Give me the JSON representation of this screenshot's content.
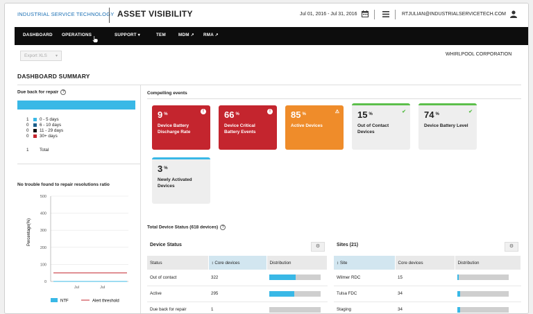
{
  "header": {
    "brand": "INDUSTRIAL SERVICE TECHNOLOGY",
    "title": "ASSET VISIBILITY",
    "date_range": "Jul 01, 2016 - Jul 31, 2016",
    "user_email": "RTJULIAN@INDUSTRIALSERVICETECH.COM",
    "icons": [
      "calendar-icon",
      "menu-icon",
      "user-icon"
    ]
  },
  "nav": {
    "items": [
      {
        "label": "DASHBOARD"
      },
      {
        "label": "OPERATIONS"
      },
      {
        "label": "SUPPORT",
        "suffix": "▾"
      },
      {
        "label": "TEM"
      },
      {
        "label": "MDM",
        "suffix": "↗"
      },
      {
        "label": "RMA",
        "suffix": "↗"
      }
    ]
  },
  "toolbar": {
    "export_label": "Export XLS",
    "company": "WHIRLPOOL CORPORATION"
  },
  "summary": {
    "title": "DASHBOARD SUMMARY"
  },
  "due_back": {
    "title": "Due back for repair",
    "bar_color": "#39b8e6",
    "rows": [
      {
        "count": "1",
        "label": "0 - 5 days",
        "color": "#39b8e6"
      },
      {
        "count": "0",
        "label": "6 - 10 days",
        "color": "#1b5e8a"
      },
      {
        "count": "0",
        "label": "11 - 29 days",
        "color": "#111111"
      },
      {
        "count": "0",
        "label": "30+ days",
        "color": "#c4252e"
      }
    ],
    "total_count": "1",
    "total_label": "Total"
  },
  "ntf": {
    "title": "No trouble found to repair resolutions ratio",
    "ylabel": "Percentage(%)",
    "legend_ntf": "NTF",
    "legend_threshold": "Alert threshold"
  },
  "chart_data": {
    "type": "line",
    "title": "No trouble found to repair resolutions ratio",
    "xlabel": "",
    "ylabel": "Percentage(%)",
    "y_ticks": [
      0,
      100,
      200,
      300,
      400,
      500
    ],
    "ylim": [
      0,
      500
    ],
    "x_ticks": [
      "Jul",
      "Jul"
    ],
    "series": [
      {
        "name": "NTF",
        "values": [
          0,
          0
        ],
        "color": "#39b8e6"
      },
      {
        "name": "Alert threshold",
        "values": [
          50,
          50
        ],
        "color": "#c4252e"
      }
    ],
    "legend": "bottom"
  },
  "events": {
    "title": "Compelling events",
    "tiles": [
      {
        "value": "9",
        "unit": "%",
        "label": "Device Battery Discharge Rate",
        "style": "red",
        "icon": "!"
      },
      {
        "value": "66",
        "unit": "%",
        "label": "Device Critical Battery Events",
        "style": "red",
        "icon": "!"
      },
      {
        "value": "85",
        "unit": "%",
        "label": "Active Devices",
        "style": "orange",
        "icon": "⚠"
      },
      {
        "value": "15",
        "unit": "%",
        "label": "Out of Contact Devices",
        "style": "grey-green",
        "icon": "✔"
      },
      {
        "value": "74",
        "unit": "%",
        "label": "Device Battery Level",
        "style": "grey-green",
        "icon": "✔"
      },
      {
        "value": "3",
        "unit": "%",
        "label": "Newly Activated Devices",
        "style": "grey-blue",
        "icon": ""
      }
    ]
  },
  "total_status": {
    "title": "Total Device Status (618 devices)"
  },
  "device_status": {
    "title": "Device Status",
    "columns": [
      "Status",
      "Core devices",
      "Distribution"
    ],
    "rows": [
      {
        "status": "Out of contact",
        "core": "322",
        "dist": 0.52
      },
      {
        "status": "Active",
        "core": "295",
        "dist": 0.48
      },
      {
        "status": "Due back for repair",
        "core": "1",
        "dist": 0.0
      }
    ]
  },
  "sites": {
    "title": "Sites (21)",
    "columns": [
      "Site",
      "Core devices",
      "Distribution"
    ],
    "rows": [
      {
        "site": "Wilmer RDC",
        "core": "15",
        "dist": 0.03
      },
      {
        "site": "Tulsa FDC",
        "core": "34",
        "dist": 0.05
      },
      {
        "site": "Staging",
        "core": "34",
        "dist": 0.05
      }
    ]
  }
}
